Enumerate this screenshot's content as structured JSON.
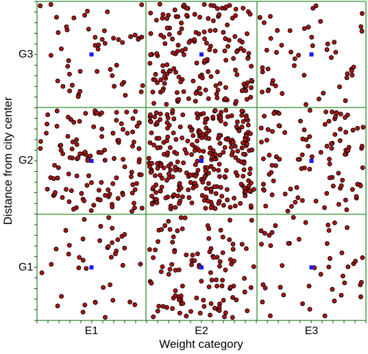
{
  "chart_data": {
    "type": "scatter",
    "xlabel": "Weight category",
    "ylabel": "Distance from city center",
    "x_categories": [
      "E1",
      "E2",
      "E3"
    ],
    "y_categories": [
      "G1",
      "G2",
      "G3"
    ],
    "grid": true,
    "colors": {
      "point_fill": "#b01414",
      "point_stroke": "#000000",
      "center_marker": "#1a1aff",
      "grid_line": "#2e8b2e"
    },
    "cells": [
      {
        "x": "E1",
        "y": "G1",
        "count": 40
      },
      {
        "x": "E2",
        "y": "G1",
        "count": 110
      },
      {
        "x": "E3",
        "y": "G1",
        "count": 45
      },
      {
        "x": "E1",
        "y": "G2",
        "count": 120
      },
      {
        "x": "E2",
        "y": "G2",
        "count": 300
      },
      {
        "x": "E3",
        "y": "G2",
        "count": 100
      },
      {
        "x": "E1",
        "y": "G3",
        "count": 50
      },
      {
        "x": "E2",
        "y": "G3",
        "count": 170
      },
      {
        "x": "E3",
        "y": "G3",
        "count": 50
      }
    ],
    "center_markers": [
      {
        "x": "E1",
        "y": "G1"
      },
      {
        "x": "E2",
        "y": "G1"
      },
      {
        "x": "E3",
        "y": "G1"
      },
      {
        "x": "E1",
        "y": "G2"
      },
      {
        "x": "E2",
        "y": "G2"
      },
      {
        "x": "E3",
        "y": "G2"
      },
      {
        "x": "E1",
        "y": "G3"
      },
      {
        "x": "E2",
        "y": "G3"
      },
      {
        "x": "E3",
        "y": "G3"
      }
    ]
  }
}
